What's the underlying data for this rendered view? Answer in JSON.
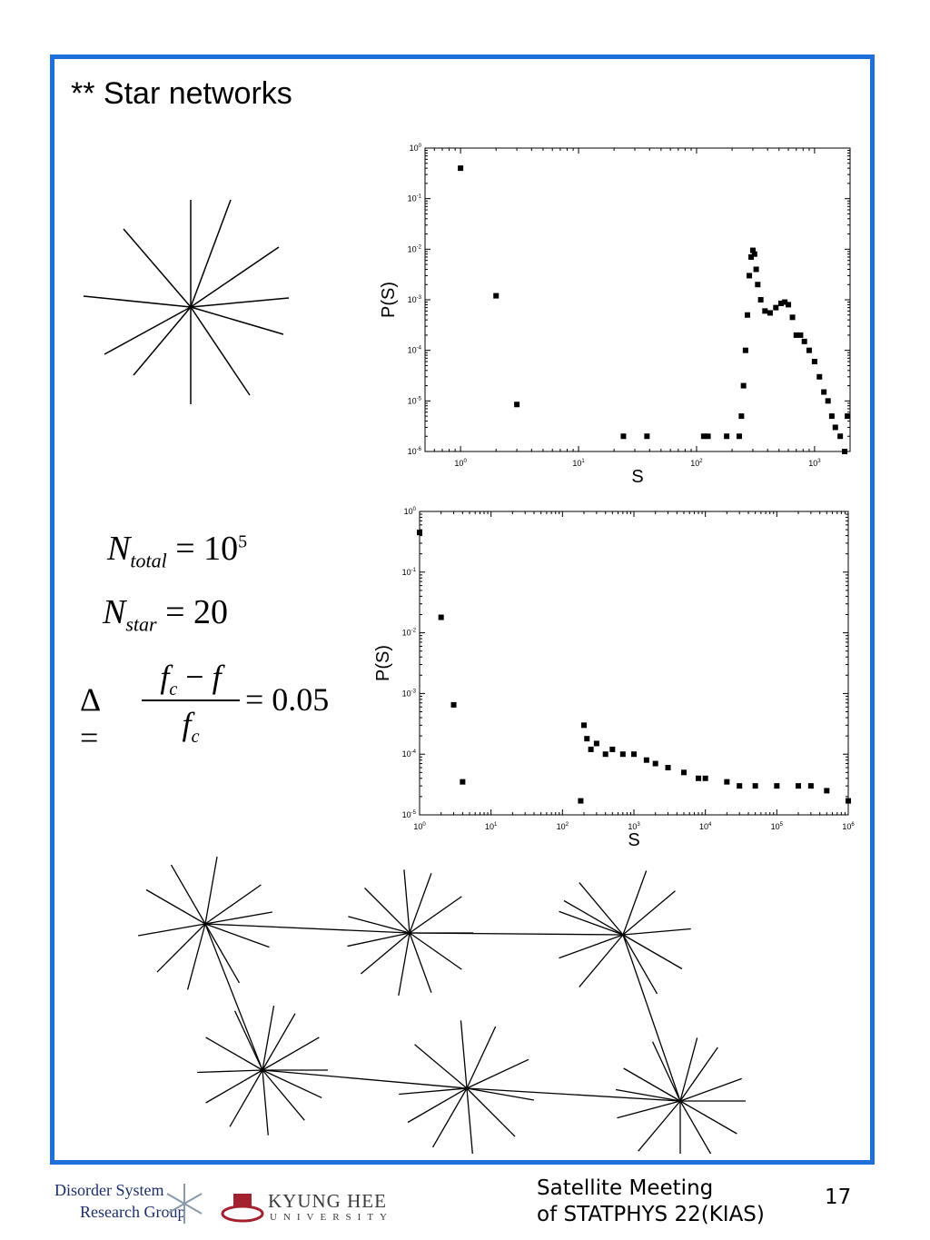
{
  "slide": {
    "title": "** Star networks",
    "page_number": "17",
    "footer_line1": "Satellite Meeting",
    "footer_line2": "of STATPHYS 22(KIAS)"
  },
  "logos": {
    "group_line1": "Disorder System",
    "group_line2": "Research Group",
    "university_line1": "KYUNG HEE",
    "university_line2": "UNIVERSITY"
  },
  "equations": {
    "n_total": "N_total = 10^5",
    "n_star": "N_star = 20",
    "delta": "Δ = (f_c − f) / f_c = 0.05"
  },
  "chart_data": [
    {
      "type": "scatter",
      "title": "",
      "xlabel": "S",
      "ylabel": "P(S)",
      "xscale": "log",
      "yscale": "log",
      "xlim": [
        0.5,
        2000
      ],
      "ylim": [
        1e-06,
        1
      ],
      "x_ticks": [
        "10^0",
        "10^1",
        "10^2",
        "10^3"
      ],
      "y_ticks": [
        "10^-6",
        "10^-5",
        "10^-4",
        "10^-3",
        "10^-2",
        "10^-1",
        "10^0"
      ],
      "grid": false,
      "points": [
        [
          1,
          0.4
        ],
        [
          2,
          0.0012
        ],
        [
          3,
          8.5e-06
        ],
        [
          24,
          2e-06
        ],
        [
          38,
          2e-06
        ],
        [
          115,
          2e-06
        ],
        [
          125,
          2e-06
        ],
        [
          180,
          2e-06
        ],
        [
          230,
          2e-06
        ],
        [
          240,
          5e-06
        ],
        [
          250,
          2e-05
        ],
        [
          260,
          0.0001
        ],
        [
          270,
          0.0005
        ],
        [
          280,
          0.003
        ],
        [
          290,
          0.007
        ],
        [
          300,
          0.0095
        ],
        [
          310,
          0.008
        ],
        [
          320,
          0.004
        ],
        [
          330,
          0.002
        ],
        [
          350,
          0.001
        ],
        [
          380,
          0.0006
        ],
        [
          420,
          0.00055
        ],
        [
          470,
          0.0007
        ],
        [
          520,
          0.00085
        ],
        [
          560,
          0.0009
        ],
        [
          600,
          0.0008
        ],
        [
          650,
          0.00045
        ],
        [
          700,
          0.0002
        ],
        [
          760,
          0.0002
        ],
        [
          820,
          0.00015
        ],
        [
          900,
          0.0001
        ],
        [
          1000,
          6e-05
        ],
        [
          1100,
          3e-05
        ],
        [
          1200,
          1.5e-05
        ],
        [
          1300,
          1e-05
        ],
        [
          1400,
          5e-06
        ],
        [
          1500,
          3e-06
        ],
        [
          1650,
          2e-06
        ],
        [
          1800,
          1e-06
        ],
        [
          1900,
          5e-06
        ]
      ]
    },
    {
      "type": "scatter",
      "title": "",
      "xlabel": "S",
      "ylabel": "P(S)",
      "xscale": "log",
      "yscale": "log",
      "xlim": [
        1,
        1000000
      ],
      "ylim": [
        1e-05,
        1
      ],
      "x_ticks": [
        "10^0",
        "10^1",
        "10^2",
        "10^3",
        "10^4",
        "10^5",
        "10^6"
      ],
      "y_ticks": [
        "10^-5",
        "10^-4",
        "10^-3",
        "10^-2",
        "10^-1",
        "10^0"
      ],
      "grid": false,
      "points": [
        [
          1,
          0.45
        ],
        [
          2,
          0.018
        ],
        [
          3,
          0.00065
        ],
        [
          4,
          3.5e-05
        ],
        [
          200,
          0.0003
        ],
        [
          220,
          0.00018
        ],
        [
          250,
          0.00012
        ],
        [
          300,
          0.00015
        ],
        [
          400,
          0.0001
        ],
        [
          500,
          0.00012
        ],
        [
          700,
          0.0001
        ],
        [
          1000,
          0.0001
        ],
        [
          1500,
          8e-05
        ],
        [
          2000,
          7e-05
        ],
        [
          3000,
          6e-05
        ],
        [
          5000,
          5e-05
        ],
        [
          8000,
          4e-05
        ],
        [
          10000,
          4e-05
        ],
        [
          20000,
          3.5e-05
        ],
        [
          30000,
          3e-05
        ],
        [
          50000,
          3e-05
        ],
        [
          100000,
          3e-05
        ],
        [
          200000,
          3e-05
        ],
        [
          300000,
          3e-05
        ],
        [
          500000,
          2.5e-05
        ],
        [
          180,
          1.7e-05
        ],
        [
          1000000,
          1.7e-05
        ]
      ]
    }
  ]
}
